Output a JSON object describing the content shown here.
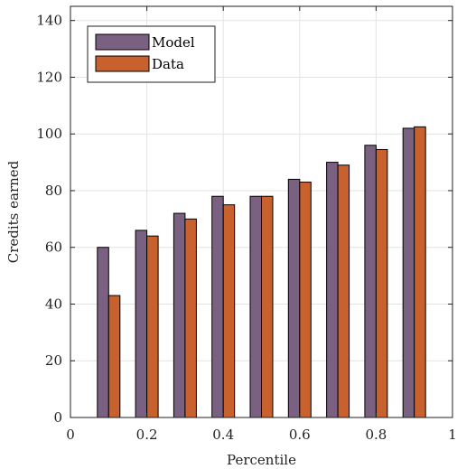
{
  "chart_data": {
    "type": "bar",
    "xlabel": "Percentile",
    "ylabel": "Credits earned",
    "xlim": [
      0,
      1
    ],
    "ylim": [
      0,
      145
    ],
    "xticks": [
      0,
      0.2,
      0.4,
      0.6,
      0.8,
      1
    ],
    "xtick_labels": [
      "0",
      "0.2",
      "0.4",
      "0.6",
      "0.8",
      "1"
    ],
    "yticks": [
      0,
      20,
      40,
      60,
      80,
      100,
      120,
      140
    ],
    "ytick_labels": [
      "0",
      "20",
      "40",
      "60",
      "80",
      "100",
      "120",
      "140"
    ],
    "x": [
      0.1,
      0.2,
      0.3,
      0.4,
      0.5,
      0.6,
      0.7,
      0.8,
      0.9
    ],
    "series": [
      {
        "name": "Model",
        "color": "#7b6181",
        "values": [
          60,
          66,
          72,
          78,
          78,
          84,
          90,
          96,
          102
        ]
      },
      {
        "name": "Data",
        "color": "#c9612f",
        "values": [
          43,
          64,
          70,
          75,
          78,
          83,
          89,
          94.5,
          102.5
        ]
      }
    ],
    "grid": true,
    "legend_position": "top-left"
  }
}
